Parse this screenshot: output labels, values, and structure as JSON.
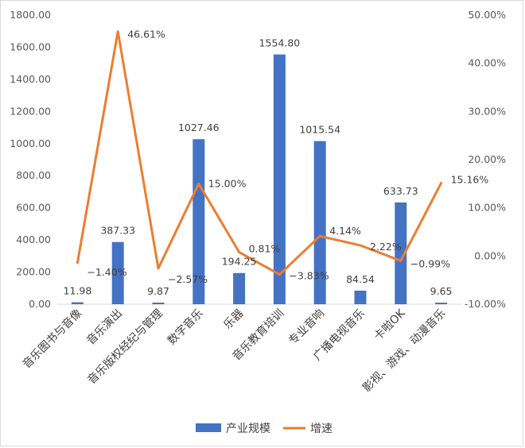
{
  "chart_data": {
    "type": "bar",
    "categories": [
      "音乐图书与音像",
      "音乐演出",
      "音乐版权经纪与管理",
      "数字音乐",
      "乐器",
      "音乐教育培训",
      "专业音响",
      "广播电视音乐",
      "卡啦OK",
      "影视、游戏、动漫音乐"
    ],
    "series": [
      {
        "name": "产业规模",
        "type": "bar",
        "axis": "left",
        "color": "#4472C4",
        "values": [
          11.98,
          387.33,
          9.87,
          1027.46,
          194.25,
          1554.8,
          1015.54,
          84.54,
          633.73,
          9.65
        ],
        "labels": [
          "11.98",
          "387.33",
          "9.87",
          "1027.46",
          "194.25",
          "1554.80",
          "1015.54",
          "84.54",
          "633.73",
          "9.65"
        ]
      },
      {
        "name": "增速",
        "type": "line",
        "axis": "right",
        "color": "#ED7D31",
        "values": [
          -1.4,
          46.61,
          -2.57,
          15.0,
          0.81,
          -3.83,
          4.14,
          2.22,
          -0.99,
          15.16
        ],
        "labels": [
          "-1.40%",
          "46.61%",
          "-2.57%",
          "15.00%",
          "0.81%",
          "-3.83%",
          "4.14%",
          "2.22%",
          "-0.99%",
          "15.16%"
        ]
      }
    ],
    "y_left": {
      "min": 0,
      "max": 1800,
      "ticks": [
        "0.00",
        "200.00",
        "400.00",
        "600.00",
        "800.00",
        "1000.00",
        "1200.00",
        "1400.00",
        "1600.00",
        "1800.00"
      ]
    },
    "y_right": {
      "min": -10,
      "max": 50,
      "ticks": [
        "-10.00%",
        "0.00%",
        "10.00%",
        "20.00%",
        "30.00%",
        "40.00%",
        "50.00%"
      ]
    },
    "grid": false,
    "legend": "bottom",
    "legend_items": [
      {
        "name": "产业规模",
        "marker": "bar",
        "color": "#4472C4"
      },
      {
        "name": "增速",
        "marker": "line",
        "color": "#ED7D31"
      }
    ],
    "title": "",
    "xlabel": "",
    "ylabel": ""
  }
}
